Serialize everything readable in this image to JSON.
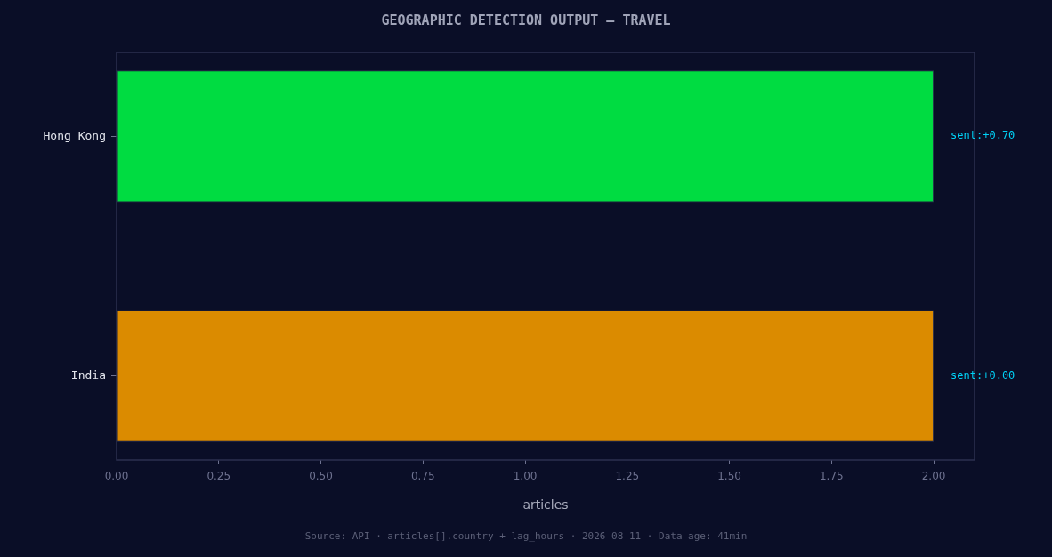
{
  "chart_data": {
    "type": "bar",
    "orientation": "horizontal",
    "title": "GEOGRAPHIC DETECTION OUTPUT — TRAVEL",
    "xlabel": "articles",
    "categories": [
      "Hong Kong",
      "India"
    ],
    "values": [
      2,
      2
    ],
    "colors": [
      "#00dc41",
      "#db8b00"
    ],
    "xlim": [
      0,
      2.1
    ],
    "xticks": [
      {
        "value": 0,
        "label": "0.00"
      },
      {
        "value": 0.25,
        "label": "0.25"
      },
      {
        "value": 0.5,
        "label": "0.50"
      },
      {
        "value": 0.75,
        "label": "0.75"
      },
      {
        "value": 1,
        "label": "1.00"
      },
      {
        "value": 1.25,
        "label": "1.25"
      },
      {
        "value": 1.5,
        "label": "1.50"
      },
      {
        "value": 1.75,
        "label": "1.75"
      },
      {
        "value": 2,
        "label": "2.00"
      }
    ],
    "annotations": [
      {
        "text": "sent:+0.70",
        "x": 2,
        "y": "Hong Kong"
      },
      {
        "text": "sent:+0.00",
        "x": 2,
        "y": "India"
      },
      "Source: API · articles[].country + lag_hours · 2026-08-11 · Data age: 41min"
    ]
  }
}
